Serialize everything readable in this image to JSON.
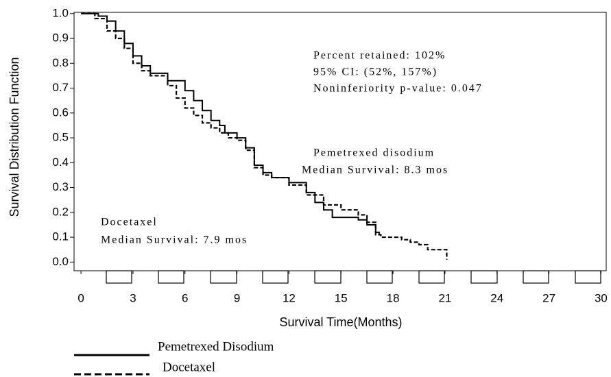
{
  "chart_data": {
    "type": "step",
    "xlabel": "Survival Time(Months)",
    "ylabel": "Survival Distribution  Function",
    "xlim": [
      -0.4,
      30.3
    ],
    "ylim": [
      -0.035,
      1.005
    ],
    "xticks": [
      0,
      3,
      6,
      9,
      12,
      15,
      18,
      21,
      24,
      27,
      30
    ],
    "yticks": [
      {
        "value": 1,
        "label": "1.0"
      },
      0.9,
      0.8,
      0.7,
      0.6,
      0.5,
      0.4,
      0.3,
      0.2,
      0.1,
      {
        "value": 0,
        "label": "0.0"
      }
    ],
    "annotations": [
      "Percent retained: 102%",
      "95% CI: (52%, 157%)",
      "Noninferiority p-value: 0.047",
      "Pemetrexed disodium",
      "Median Survival: 8.3 mos",
      "Docetaxel",
      "Median Survival: 7.9 mos"
    ],
    "series": [
      {
        "name": "Pemetrexed Disodium",
        "color": "#000000",
        "dash": "solid",
        "x": [
          0,
          1,
          1.5,
          2,
          2.5,
          3,
          3.5,
          4,
          5,
          6,
          6.5,
          7,
          7.5,
          8,
          8.3,
          9,
          9.5,
          10,
          10.5,
          11,
          12,
          13,
          13.5,
          14,
          14.5,
          15,
          16,
          16.5,
          17,
          17.2
        ],
        "values": [
          1.0,
          0.99,
          0.97,
          0.93,
          0.88,
          0.83,
          0.79,
          0.76,
          0.73,
          0.69,
          0.65,
          0.61,
          0.57,
          0.55,
          0.52,
          0.5,
          0.46,
          0.39,
          0.36,
          0.34,
          0.32,
          0.28,
          0.24,
          0.21,
          0.18,
          0.18,
          0.17,
          0.15,
          0.12,
          0.11
        ]
      },
      {
        "name": "Docetaxel",
        "color": "#000000",
        "dash": "dashed",
        "x": [
          0,
          0.8,
          1.5,
          2,
          2.5,
          3,
          3.5,
          4,
          5,
          5.5,
          6,
          6.5,
          7,
          7.5,
          8,
          8.5,
          9,
          9.5,
          10,
          10.5,
          11,
          12,
          13,
          14,
          15,
          16,
          16.5,
          17,
          17.3,
          18,
          18.5,
          19,
          19.5,
          20,
          21,
          21.1
        ],
        "values": [
          1.0,
          0.98,
          0.93,
          0.9,
          0.86,
          0.8,
          0.77,
          0.75,
          0.71,
          0.66,
          0.62,
          0.59,
          0.56,
          0.54,
          0.52,
          0.5,
          0.49,
          0.45,
          0.38,
          0.35,
          0.34,
          0.31,
          0.27,
          0.23,
          0.21,
          0.19,
          0.16,
          0.11,
          0.1,
          0.1,
          0.09,
          0.08,
          0.07,
          0.05,
          0.05,
          0.01
        ]
      }
    ]
  }
}
